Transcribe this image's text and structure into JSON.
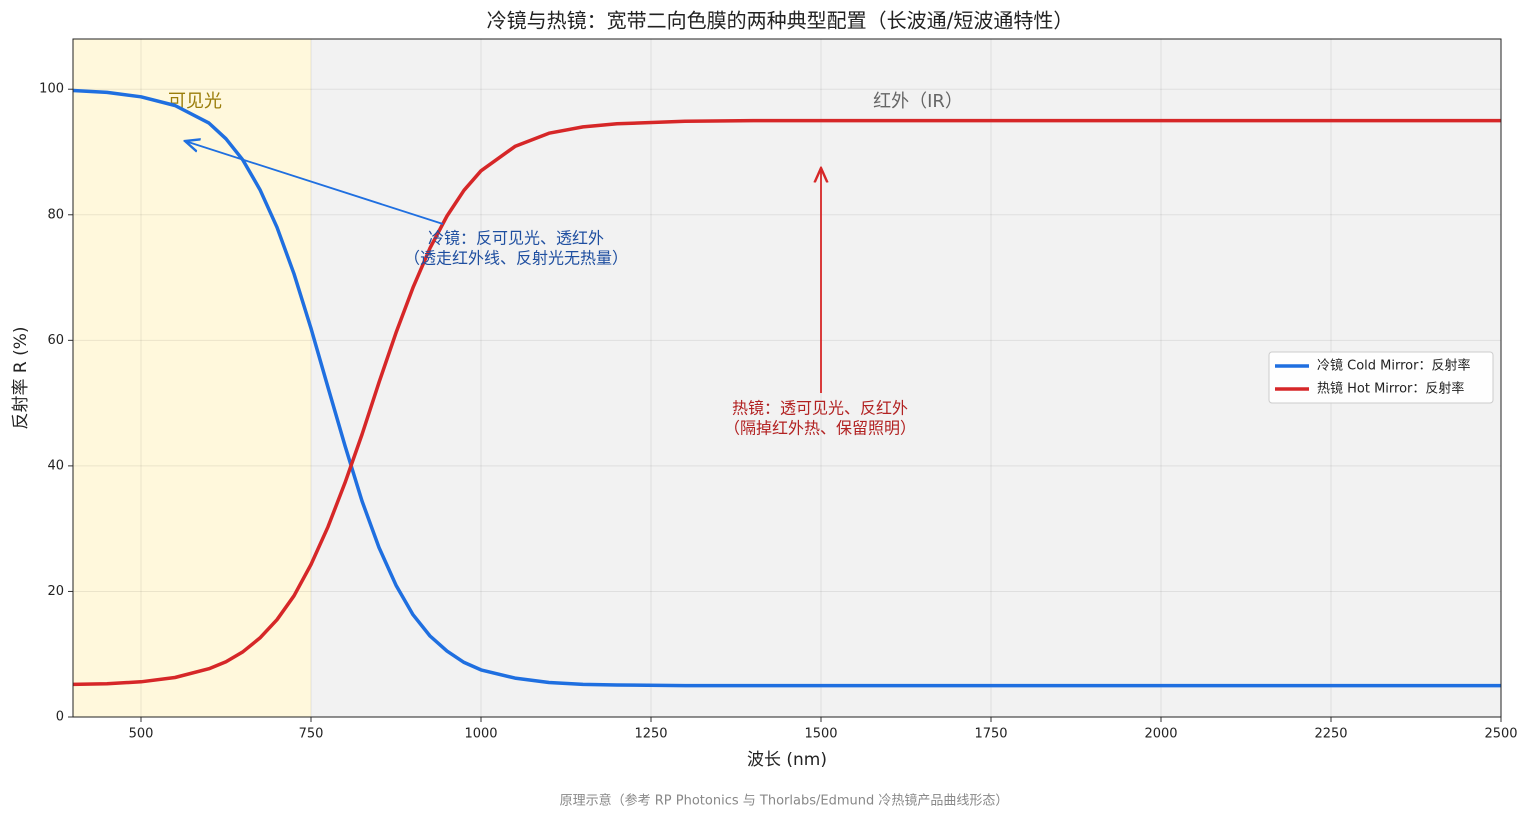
{
  "chart_data": {
    "type": "line",
    "title": "冷镜与热镜：宽带二向色膜的两种典型配置（长波通/短波通特性）",
    "xlabel": "波长 (nm)",
    "ylabel": "反射率 R (%)",
    "footnote": "原理示意（参考 RP Photonics 与 Thorlabs/Edmund 冷热镜产品曲线形态）",
    "x": [
      400,
      450,
      500,
      550,
      600,
      625,
      650,
      675,
      700,
      725,
      750,
      775,
      800,
      825,
      850,
      875,
      900,
      925,
      950,
      975,
      1000,
      1050,
      1100,
      1150,
      1200,
      1300,
      1400,
      1500,
      1700,
      1900,
      2100,
      2300,
      2500
    ],
    "series": [
      {
        "name": "冷镜 Cold Mirror：反射率",
        "color": "#1f6fe0",
        "values": [
          99.8,
          99.5,
          98.8,
          97.4,
          94.6,
          92.1,
          88.7,
          84.0,
          78.0,
          70.6,
          61.9,
          52.5,
          43.2,
          34.4,
          27.0,
          21.0,
          16.3,
          12.9,
          10.5,
          8.7,
          7.5,
          6.2,
          5.5,
          5.2,
          5.1,
          5.0,
          5.0,
          5.0,
          5.0,
          5.0,
          5.0,
          5.0,
          5.0
        ]
      },
      {
        "name": "热镜 Hot Mirror：反射率",
        "color": "#d62728",
        "values": [
          5.2,
          5.3,
          5.6,
          6.3,
          7.7,
          8.8,
          10.4,
          12.6,
          15.5,
          19.3,
          24.3,
          30.3,
          37.3,
          45.0,
          53.3,
          61.2,
          68.4,
          74.7,
          79.8,
          83.9,
          87.0,
          90.9,
          93.0,
          94.0,
          94.5,
          94.9,
          95.0,
          95.0,
          95.0,
          95.0,
          95.0,
          95.0,
          95.0
        ]
      }
    ],
    "shaded_regions": [
      {
        "label": "可见光",
        "range": [
          400,
          750
        ],
        "color": "#fff8dc"
      },
      {
        "label": "红外（IR）",
        "range": [
          750,
          2500
        ],
        "color": "#f2f2f2"
      }
    ],
    "annotations": [
      {
        "lines": [
          "冷镜：反可见光、透红外",
          "（透走红外线、反射光无热量）"
        ],
        "color": "#1f4fa0"
      },
      {
        "lines": [
          "热镜：透可见光、反红外",
          "（隔掉红外热、保留照明）"
        ],
        "color": "#b22222"
      }
    ],
    "xlim": [
      400,
      2500
    ],
    "xticks": [
      500,
      750,
      1000,
      1250,
      1500,
      1750,
      2000,
      2250,
      2500
    ],
    "ylim": [
      0,
      108
    ],
    "yticks": [
      0,
      20,
      40,
      60,
      80,
      100
    ],
    "grid": true,
    "legend": "right"
  }
}
